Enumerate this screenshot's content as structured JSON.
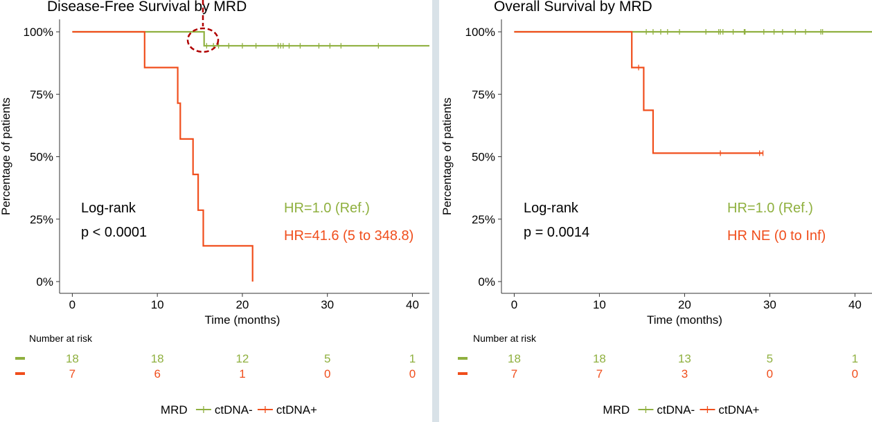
{
  "colors": {
    "neg": "#8fb03f",
    "pos": "#f04e1c",
    "annotation": "#b00000",
    "axis": "#333333"
  },
  "chart_data": [
    {
      "type": "line",
      "subtype": "kaplan-meier",
      "title": "Disease-Free Survival by MRD",
      "xlabel": "Time (months)",
      "ylabel": "Percentage of patients",
      "xlim": [
        -1.5,
        42
      ],
      "ylim": [
        0,
        100
      ],
      "xticks": [
        0,
        10,
        20,
        30,
        40
      ],
      "yticks": [
        "0%",
        "25%",
        "50%",
        "75%",
        "100%"
      ],
      "series": [
        {
          "name": "ctDNA-",
          "color": "#8fb03f",
          "points": [
            [
              0,
              100
            ],
            [
              15.5,
              100
            ],
            [
              15.5,
              94.4
            ],
            [
              42,
              94.4
            ]
          ],
          "censor": [
            15.8,
            16.6,
            17.2,
            18.4,
            20,
            21.6,
            24.2,
            24.5,
            24.8,
            25.5,
            26.8,
            29,
            30.3,
            31.6,
            36
          ]
        },
        {
          "name": "ctDNA+",
          "color": "#f04e1c",
          "points": [
            [
              0,
              100
            ],
            [
              8.5,
              100
            ],
            [
              8.5,
              85.7
            ],
            [
              12.4,
              85.7
            ],
            [
              12.4,
              71.4
            ],
            [
              12.7,
              71.4
            ],
            [
              12.7,
              57.1
            ],
            [
              14.2,
              57.1
            ],
            [
              14.2,
              42.9
            ],
            [
              14.8,
              42.9
            ],
            [
              14.8,
              28.6
            ],
            [
              15.4,
              28.6
            ],
            [
              15.4,
              14.3
            ],
            [
              21.2,
              14.3
            ],
            [
              21.2,
              0
            ]
          ],
          "censor": []
        }
      ],
      "annotations": {
        "test": "Log-rank",
        "p": "p < 0.0001",
        "hr_neg": "HR=1.0 (Ref.)",
        "hr_pos": "HR=41.6 (5 to 348.8)"
      },
      "highlight_x": 15.2,
      "risk_table": {
        "title": "Number at risk",
        "times": [
          0,
          10,
          20,
          30,
          40
        ],
        "neg": [
          "18",
          "18",
          "12",
          "5",
          "1"
        ],
        "pos": [
          "7",
          "6",
          "1",
          "0",
          "0"
        ]
      },
      "legend": {
        "title": "MRD",
        "neg": "ctDNA-",
        "pos": "ctDNA+",
        "position": "bottom"
      }
    },
    {
      "type": "line",
      "subtype": "kaplan-meier",
      "title": "Overall Survival by MRD",
      "xlabel": "Time (months)",
      "ylabel": "Percentage of patients",
      "xlim": [
        -1.5,
        42
      ],
      "ylim": [
        0,
        100
      ],
      "xticks": [
        0,
        10,
        20,
        30,
        40
      ],
      "yticks": [
        "0%",
        "25%",
        "50%",
        "75%",
        "100%"
      ],
      "series": [
        {
          "name": "ctDNA-",
          "color": "#8fb03f",
          "points": [
            [
              0,
              100
            ],
            [
              42,
              100
            ]
          ],
          "censor": [
            15.5,
            16.3,
            17.2,
            18,
            19.4,
            22.5,
            24,
            24.2,
            24.5,
            25.7,
            27,
            27.1,
            29.3,
            30.5,
            31.5,
            33,
            34.2,
            36,
            36.2
          ]
        },
        {
          "name": "ctDNA+",
          "color": "#f04e1c",
          "points": [
            [
              0,
              100
            ],
            [
              13.8,
              100
            ],
            [
              13.8,
              85.7
            ],
            [
              15.2,
              85.7
            ],
            [
              15.2,
              68.6
            ],
            [
              16.3,
              68.6
            ],
            [
              16.3,
              51.4
            ],
            [
              29.2,
              51.4
            ]
          ],
          "censor": [
            14.6,
            24.2,
            28.8,
            29.2
          ]
        }
      ],
      "annotations": {
        "test": "Log-rank",
        "p": "p = 0.0014",
        "hr_neg": "HR=1.0 (Ref.)",
        "hr_pos": "HR NE (0 to Inf)"
      },
      "risk_table": {
        "title": "Number at risk",
        "times": [
          0,
          10,
          20,
          30,
          40
        ],
        "neg": [
          "18",
          "18",
          "13",
          "5",
          "1"
        ],
        "pos": [
          "7",
          "7",
          "3",
          "0",
          "0"
        ]
      },
      "legend": {
        "title": "MRD",
        "neg": "ctDNA-",
        "pos": "ctDNA+",
        "position": "bottom"
      }
    }
  ]
}
